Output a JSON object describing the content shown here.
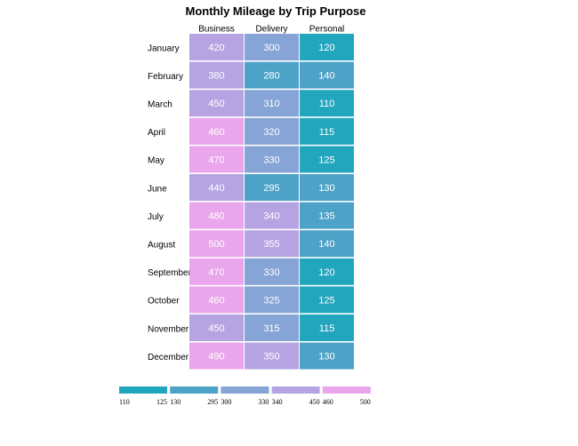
{
  "chart_data": {
    "type": "heatmap",
    "title": "Monthly Mileage by Trip Purpose",
    "columns": [
      "Business",
      "Delivery",
      "Personal"
    ],
    "rows": [
      "January",
      "February",
      "March",
      "April",
      "May",
      "June",
      "July",
      "August",
      "September",
      "October",
      "November",
      "December"
    ],
    "values": [
      [
        420,
        300,
        120
      ],
      [
        380,
        280,
        140
      ],
      [
        450,
        310,
        110
      ],
      [
        460,
        320,
        115
      ],
      [
        470,
        330,
        125
      ],
      [
        440,
        295,
        130
      ],
      [
        480,
        340,
        135
      ],
      [
        500,
        355,
        140
      ],
      [
        470,
        330,
        120
      ],
      [
        460,
        325,
        125
      ],
      [
        450,
        315,
        115
      ],
      [
        490,
        350,
        130
      ]
    ],
    "legend": {
      "bins": [
        {
          "min": "110",
          "max": "125",
          "color": "#22a6be"
        },
        {
          "min": "130",
          "max": "295",
          "color": "#4da2c8"
        },
        {
          "min": "300",
          "max": "330",
          "color": "#86a4d6"
        },
        {
          "min": "340",
          "max": "450",
          "color": "#b6a4e2"
        },
        {
          "min": "460",
          "max": "500",
          "color": "#eaa6ec"
        }
      ]
    }
  }
}
